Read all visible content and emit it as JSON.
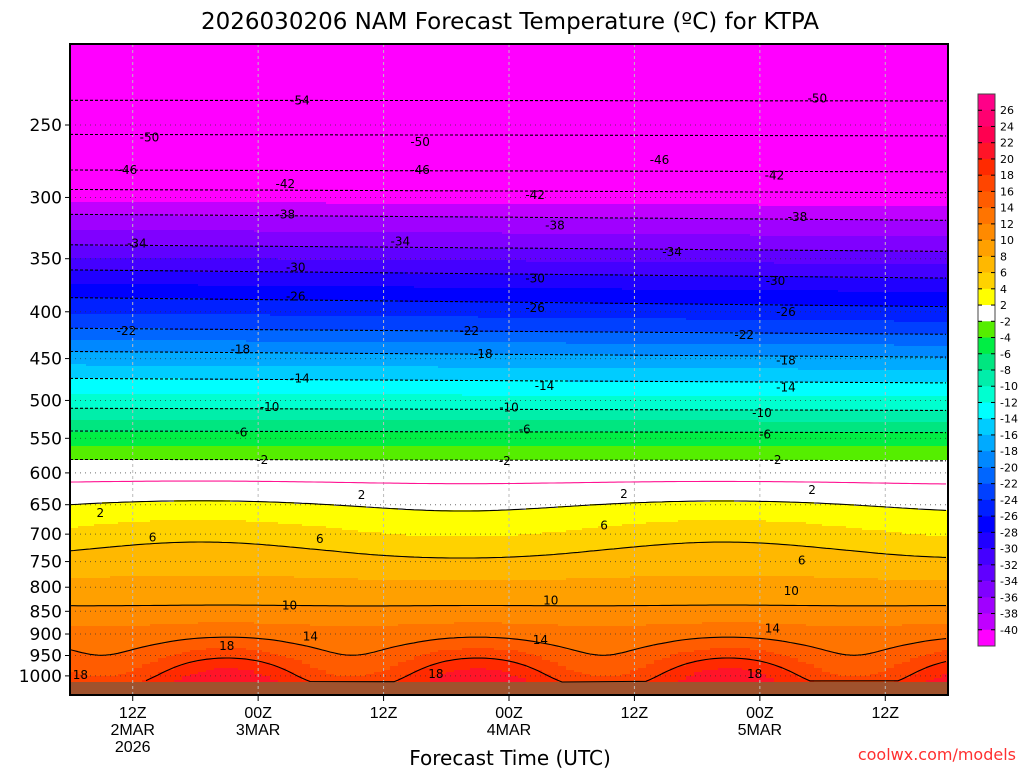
{
  "chart_data": {
    "type": "heatmap",
    "subtype": "filled time-pressure cross-section with isotherms",
    "title": "2026030206 NAM Forecast Temperature (ºC) for KTPA",
    "xlabel": "Forecast Time (UTC)",
    "ylabel": "",
    "credit": "coolwx.com/models",
    "x_range_hours": [
      0,
      84
    ],
    "y_range_hpa": [
      1049,
      204
    ],
    "y_scale": "log",
    "y_ticks": [
      250,
      300,
      350,
      400,
      450,
      500,
      550,
      600,
      650,
      700,
      750,
      800,
      850,
      900,
      950,
      1000
    ],
    "x_ticks": [
      {
        "hour": 6,
        "lines": [
          "12Z",
          "2MAR",
          "2026"
        ]
      },
      {
        "hour": 18,
        "lines": [
          "00Z",
          "3MAR"
        ]
      },
      {
        "hour": 30,
        "lines": [
          "12Z"
        ]
      },
      {
        "hour": 42,
        "lines": [
          "00Z",
          "4MAR"
        ]
      },
      {
        "hour": 54,
        "lines": [
          "12Z"
        ]
      },
      {
        "hour": 66,
        "lines": [
          "00Z",
          "5MAR"
        ]
      },
      {
        "hour": 78,
        "lines": [
          "12Z"
        ]
      }
    ],
    "grid": true,
    "mean_profile": {
      "pressure_hpa": [
        200,
        235,
        256,
        280,
        294,
        313,
        338,
        360,
        386,
        417,
        442,
        473,
        510,
        540,
        580,
        614,
        650,
        730,
        838,
        920,
        990,
        1050
      ],
      "temperature_c": [
        -58,
        -54,
        -50,
        -46,
        -42,
        -38,
        -34,
        -30,
        -26,
        -22,
        -18,
        -14,
        -10,
        -6,
        -2,
        0,
        2,
        6,
        10,
        14,
        18,
        21
      ]
    },
    "ground_below_hpa": 1018,
    "contour_levels": [
      -54,
      -50,
      -46,
      -42,
      -38,
      -34,
      -30,
      -26,
      -22,
      -18,
      -14,
      -10,
      -6,
      -2,
      0,
      2,
      6,
      10,
      14,
      18
    ],
    "contour_labels": [
      {
        "text": "-54",
        "hour": 22,
        "p": 235
      },
      {
        "text": "-50",
        "hour": 7.6,
        "p": 258
      },
      {
        "text": "-50",
        "hour": 33.5,
        "p": 261
      },
      {
        "text": "-50",
        "hour": 71.5,
        "p": 234
      },
      {
        "text": "-46",
        "hour": 5.5,
        "p": 280
      },
      {
        "text": "-46",
        "hour": 33.5,
        "p": 280
      },
      {
        "text": "-46",
        "hour": 56.4,
        "p": 273
      },
      {
        "text": "-42",
        "hour": 20.6,
        "p": 290
      },
      {
        "text": "-42",
        "hour": 44.5,
        "p": 298
      },
      {
        "text": "-42",
        "hour": 67.4,
        "p": 284
      },
      {
        "text": "-38",
        "hour": 20.6,
        "p": 313
      },
      {
        "text": "-38",
        "hour": 46.4,
        "p": 322
      },
      {
        "text": "-38",
        "hour": 69.6,
        "p": 315
      },
      {
        "text": "-34",
        "hour": 6.4,
        "p": 337
      },
      {
        "text": "-34",
        "hour": 31.6,
        "p": 335
      },
      {
        "text": "-34",
        "hour": 57.6,
        "p": 344
      },
      {
        "text": "-30",
        "hour": 21.6,
        "p": 358
      },
      {
        "text": "-30",
        "hour": 44.5,
        "p": 368
      },
      {
        "text": "-30",
        "hour": 67.5,
        "p": 370
      },
      {
        "text": "-26",
        "hour": 21.6,
        "p": 385
      },
      {
        "text": "-26",
        "hour": 44.5,
        "p": 396
      },
      {
        "text": "-26",
        "hour": 68.5,
        "p": 400
      },
      {
        "text": "-22",
        "hour": 5.4,
        "p": 420
      },
      {
        "text": "-22",
        "hour": 38.2,
        "p": 420
      },
      {
        "text": "-22",
        "hour": 64.5,
        "p": 424
      },
      {
        "text": "-18",
        "hour": 16.3,
        "p": 440
      },
      {
        "text": "-18",
        "hour": 39.5,
        "p": 445
      },
      {
        "text": "-18",
        "hour": 68.5,
        "p": 452
      },
      {
        "text": "-14",
        "hour": 22,
        "p": 473
      },
      {
        "text": "-14",
        "hour": 45.4,
        "p": 482
      },
      {
        "text": "-14",
        "hour": 68.5,
        "p": 484
      },
      {
        "text": "-10",
        "hour": 19.1,
        "p": 508
      },
      {
        "text": "-10",
        "hour": 42,
        "p": 509
      },
      {
        "text": "-10",
        "hour": 66.2,
        "p": 516
      },
      {
        "text": "-6",
        "hour": 16.4,
        "p": 542
      },
      {
        "text": "-6",
        "hour": 43.5,
        "p": 538
      },
      {
        "text": "-6",
        "hour": 66.5,
        "p": 545
      },
      {
        "text": "-2",
        "hour": 18.4,
        "p": 581
      },
      {
        "text": "-2",
        "hour": 41.6,
        "p": 582
      },
      {
        "text": "-2",
        "hour": 67.5,
        "p": 581
      },
      {
        "text": "2",
        "hour": 2.9,
        "p": 664
      },
      {
        "text": "2",
        "hour": 27.9,
        "p": 634
      },
      {
        "text": "2",
        "hour": 53,
        "p": 633
      },
      {
        "text": "2",
        "hour": 71,
        "p": 626
      },
      {
        "text": "6",
        "hour": 7.9,
        "p": 706
      },
      {
        "text": "6",
        "hour": 23.9,
        "p": 709
      },
      {
        "text": "6",
        "hour": 51.1,
        "p": 685
      },
      {
        "text": "6",
        "hour": 70,
        "p": 748
      },
      {
        "text": "10",
        "hour": 21,
        "p": 838
      },
      {
        "text": "10",
        "hour": 46,
        "p": 827
      },
      {
        "text": "10",
        "hour": 69,
        "p": 808
      },
      {
        "text": "14",
        "hour": 23,
        "p": 906
      },
      {
        "text": "14",
        "hour": 45,
        "p": 914
      },
      {
        "text": "14",
        "hour": 67.2,
        "p": 888
      },
      {
        "text": "18",
        "hour": 1,
        "p": 998
      },
      {
        "text": "18",
        "hour": 15,
        "p": 928
      },
      {
        "text": "18",
        "hour": 35,
        "p": 995
      },
      {
        "text": "18",
        "hour": 65.5,
        "p": 995
      }
    ],
    "colorbar": {
      "labels": [
        "26",
        "24",
        "22",
        "20",
        "18",
        "16",
        "14",
        "12",
        "10",
        "8",
        "6",
        "4",
        "2",
        "-2",
        "-4",
        "-6",
        "-8",
        "-10",
        "-12",
        "-14",
        "-16",
        "-18",
        "-20",
        "-22",
        "-24",
        "-26",
        "-28",
        "-30",
        "-32",
        "-34",
        "-36",
        "-38",
        "-40"
      ],
      "thresholds": [
        26,
        24,
        22,
        20,
        18,
        16,
        14,
        12,
        10,
        8,
        6,
        4,
        2,
        -2,
        -4,
        -6,
        -8,
        -10,
        -12,
        -14,
        -16,
        -18,
        -20,
        -22,
        -24,
        -26,
        -28,
        -30,
        -32,
        -34,
        -36,
        -38,
        -40
      ],
      "colors": [
        "#ff0088",
        "#ff0070",
        "#ff0050",
        "#ff1428",
        "#ff2a00",
        "#ff4500",
        "#ff5c00",
        "#ff7400",
        "#ff8a00",
        "#ffa000",
        "#ffb800",
        "#ffd200",
        "#ffff00",
        "#ffffff",
        "#55ee00",
        "#00ee44",
        "#00e680",
        "#00eeaa",
        "#00ffd0",
        "#00ffff",
        "#00ccff",
        "#00aaff",
        "#0088ff",
        "#0066ff",
        "#0040ff",
        "#0020ff",
        "#0000ff",
        "#2000ff",
        "#4400ff",
        "#6000ff",
        "#8000ff",
        "#a000ff",
        "#c000ff",
        "#ff00ff"
      ]
    },
    "ground_color": "#a0522d",
    "freezing_line_color": "#ff1493"
  }
}
